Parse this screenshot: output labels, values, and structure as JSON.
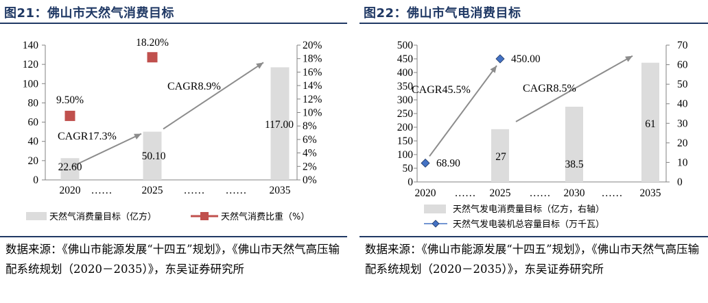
{
  "left": {
    "title": "图21：佛山市天然气消费目标",
    "source": "数据来源：《佛山市能源发展“十四五”规划》，《佛山市天然气高压输配系统规划（2020－2035）》，东吴证券研究所",
    "chart_data": {
      "type": "bar",
      "categories": [
        "2020",
        "……",
        "2025",
        "……",
        "……",
        "2035"
      ],
      "series": [
        {
          "name": "天然气消费量目标（亿方）",
          "kind": "bar",
          "axis": "left",
          "values": [
            22.6,
            null,
            50.1,
            null,
            null,
            117.0
          ],
          "labels": [
            "22.60",
            "",
            "50.10",
            "",
            "",
            "117.00"
          ],
          "color": "#dcdcdc"
        },
        {
          "name": "天然气消费比重（%）",
          "kind": "marker",
          "axis": "right",
          "values": [
            9.5,
            null,
            18.2,
            null,
            null,
            null
          ],
          "labels": [
            "9.50%",
            "",
            "18.20%",
            "",
            "",
            ""
          ],
          "color": "#c0504d"
        }
      ],
      "ylim": [
        0,
        140
      ],
      "yticks": [
        "0",
        "20",
        "40",
        "60",
        "80",
        "100",
        "120",
        "140"
      ],
      "y2lim": [
        0,
        20
      ],
      "y2ticks": [
        "0%",
        "2%",
        "4%",
        "6%",
        "8%",
        "10%",
        "12%",
        "14%",
        "16%",
        "18%",
        "20%"
      ],
      "annotations": [
        {
          "text": "CAGR17.3%",
          "from": "2020",
          "to": "2025"
        },
        {
          "text": "CAGR8.9%",
          "from": "2025",
          "to": "2035"
        }
      ],
      "grid": false
    }
  },
  "right": {
    "title": "图22：佛山市气电消费目标",
    "source": "数据来源：《佛山市能源发展“十四五”规划》，《佛山市天然气高压输配系统规划（2020－2035）》，东吴证券研究所",
    "chart_data": {
      "type": "bar",
      "categories": [
        "2020",
        "……",
        "2025",
        "……",
        "2030",
        "……",
        "2035"
      ],
      "series": [
        {
          "name": "天然气发电消费量目标（亿方，右轴）",
          "kind": "bar",
          "axis": "right",
          "values": [
            null,
            null,
            27,
            null,
            38.5,
            null,
            61
          ],
          "labels": [
            "",
            "",
            "27",
            "",
            "38.5",
            "",
            "61"
          ],
          "color": "#dcdcdc"
        },
        {
          "name": "天然气发电装机总容量目标（万千瓦）",
          "kind": "line",
          "axis": "left",
          "values": [
            68.9,
            null,
            450.0,
            null,
            null,
            null,
            null
          ],
          "labels": [
            "68.90",
            "",
            "450.00",
            "",
            "",
            "",
            ""
          ],
          "color": "#4472c4"
        }
      ],
      "ylim": [
        0,
        500
      ],
      "yticks": [
        "0",
        "50",
        "100",
        "150",
        "200",
        "250",
        "300",
        "350",
        "400",
        "450",
        "500"
      ],
      "y2lim": [
        0,
        70
      ],
      "y2ticks": [
        "0",
        "10",
        "20",
        "30",
        "40",
        "50",
        "60",
        "70"
      ],
      "annotations": [
        {
          "text": "CAGR45.5%",
          "from": "2020",
          "to": "2025"
        },
        {
          "text": "CAGR8.5%",
          "from": "2025",
          "to": "2035"
        }
      ],
      "grid": false
    }
  }
}
